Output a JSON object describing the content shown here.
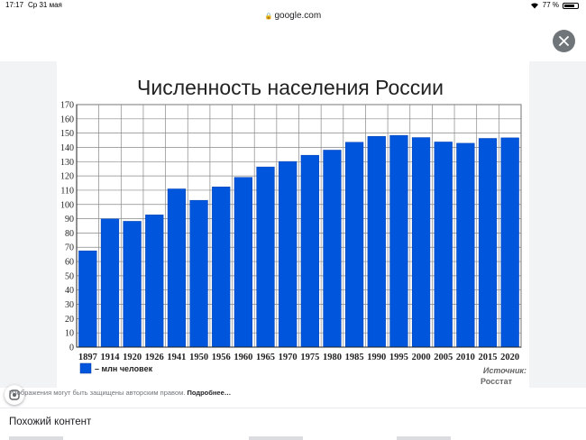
{
  "status_bar": {
    "time": "17:17",
    "date": "Ср 31 мая",
    "battery": "77 %"
  },
  "browser": {
    "url": "google.com"
  },
  "viewer": {
    "copyright_text": "Изображения могут быть защищены авторским правом.",
    "more_link": "Подробнее…",
    "related_title": "Похожий контент"
  },
  "chart_data": {
    "type": "bar",
    "title": "Численность населения России",
    "categories": [
      "1897",
      "1914",
      "1920",
      "1926",
      "1941",
      "1950",
      "1956",
      "1960",
      "1965",
      "1970",
      "1975",
      "1980",
      "1985",
      "1990",
      "1995",
      "2000",
      "2005",
      "2010",
      "2015",
      "2020"
    ],
    "series": [
      {
        "name": "млн человек",
        "values": [
          67.5,
          89.9,
          88.2,
          92.7,
          110.9,
          102.9,
          112.3,
          119.0,
          126.3,
          130.1,
          134.5,
          138.1,
          143.6,
          147.7,
          148.4,
          146.9,
          143.8,
          142.9,
          146.3,
          146.7
        ]
      }
    ],
    "ylim": [
      0,
      170
    ],
    "yticks": [
      0,
      10,
      20,
      30,
      40,
      50,
      60,
      70,
      80,
      90,
      100,
      110,
      120,
      130,
      140,
      150,
      160,
      170
    ],
    "grid": true,
    "legend": "bottom-left",
    "source_label": "Источник:",
    "source": "Росстат",
    "bar_color": "#0055dd"
  }
}
